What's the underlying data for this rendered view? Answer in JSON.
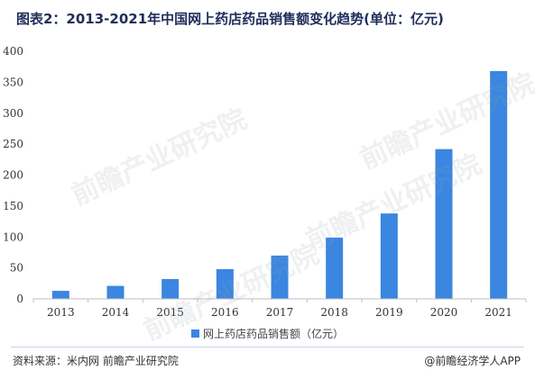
{
  "title": "图表2：2013-2021年中国网上药店药品销售额变化趋势(单位：亿元)",
  "footer": {
    "source": "资料来源：米内网 前瞻产业研究院",
    "brand": "@前瞻经济学人APP"
  },
  "watermark_text": "前瞻产业研究院",
  "colors": {
    "bar": "#3a86e0",
    "axis": "#999999",
    "title": "#1f2d5a"
  },
  "chart_data": {
    "type": "bar",
    "title": "图表2：2013-2021年中国网上药店药品销售额变化趋势(单位：亿元)",
    "xlabel": "",
    "ylabel": "",
    "categories": [
      "2013",
      "2014",
      "2015",
      "2016",
      "2017",
      "2018",
      "2019",
      "2020",
      "2021"
    ],
    "series": [
      {
        "name": "网上药店药品销售额（亿元）",
        "values": [
          13,
          21,
          32,
          48,
          70,
          99,
          138,
          242,
          368
        ]
      }
    ],
    "ylim": [
      0,
      400
    ],
    "yticks": [
      0,
      50,
      100,
      150,
      200,
      250,
      300,
      350,
      400
    ],
    "grid": false,
    "legend_position": "bottom"
  }
}
